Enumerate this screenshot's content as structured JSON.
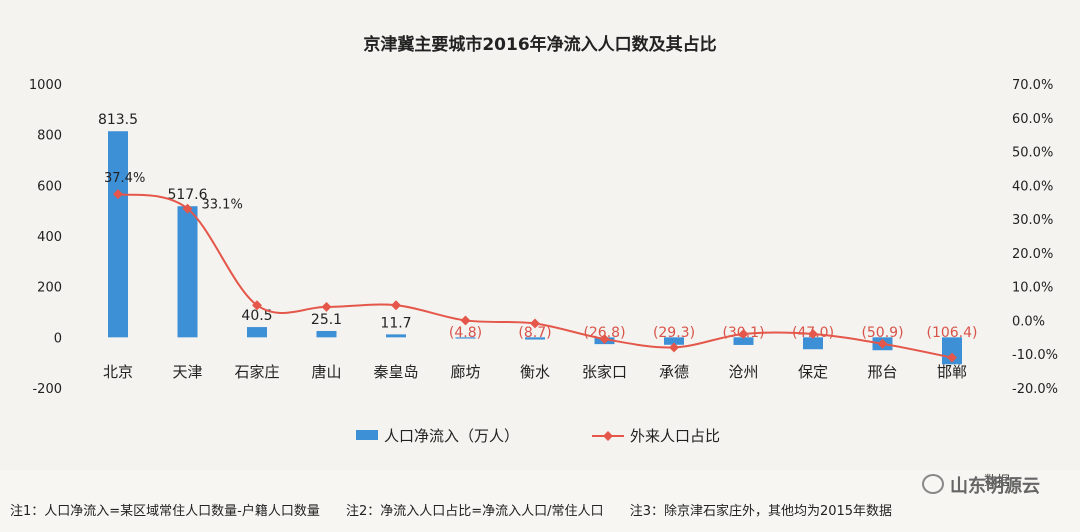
{
  "chart_data": {
    "type": "bar",
    "title": "京津冀主要城市2016年净流入人口数及其占比",
    "categories": [
      "北京",
      "天津",
      "石家庄",
      "唐山",
      "秦皇岛",
      "廊坊",
      "衡水",
      "张家口",
      "承德",
      "沧州",
      "保定",
      "邢台",
      "邯郸"
    ],
    "series": [
      {
        "name": "人口净流入（万人）",
        "type": "bar",
        "axis": "left",
        "color": "#3d8fd6",
        "values": [
          813.5,
          517.6,
          40.5,
          25.1,
          11.7,
          -4.8,
          -8.7,
          -26.8,
          -29.3,
          -30.1,
          -47.0,
          -50.9,
          -106.4
        ],
        "labels": [
          "813.5",
          "517.6",
          "40.5",
          "25.1",
          "11.7",
          "(4.8)",
          "(8.7)",
          "(26.8)",
          "(29.3)",
          "(30.1)",
          "(47.0)",
          "(50.9)",
          "(106.4)"
        ]
      },
      {
        "name": "外来人口占比",
        "type": "line",
        "axis": "right",
        "color": "#e4574a",
        "values": [
          37.4,
          33.1,
          4.5,
          4.0,
          4.5,
          0.0,
          -0.9,
          -5.5,
          -8.0,
          -4.0,
          -4.0,
          -6.9,
          -11.0
        ],
        "labels": [
          "37.4%",
          "33.1%",
          "",
          "",
          "",
          "",
          "",
          "",
          "",
          "",
          "",
          "",
          ""
        ]
      }
    ],
    "y_left": {
      "min": -200,
      "max": 1000,
      "ticks": [
        "1000",
        "800",
        "600",
        "400",
        "200",
        "0",
        "-200"
      ]
    },
    "y_right": {
      "min": -20,
      "max": 70,
      "ticks": [
        "70.0%",
        "60.0%",
        "50.0%",
        "40.0%",
        "30.0%",
        "20.0%",
        "10.0%",
        "0.0%",
        "-10.0%",
        "-20.0%"
      ]
    },
    "legend_position": "bottom",
    "grid": false
  },
  "footer": {
    "source": "数据",
    "watermark": "山东明源云",
    "note1": "注1：人口净流入=某区域常住人口数量-户籍人口数量",
    "note2": "注2：净流入人口占比=净流入人口/常住人口",
    "note3": "注3：除京津石家庄外，其他均为2015年数据"
  }
}
